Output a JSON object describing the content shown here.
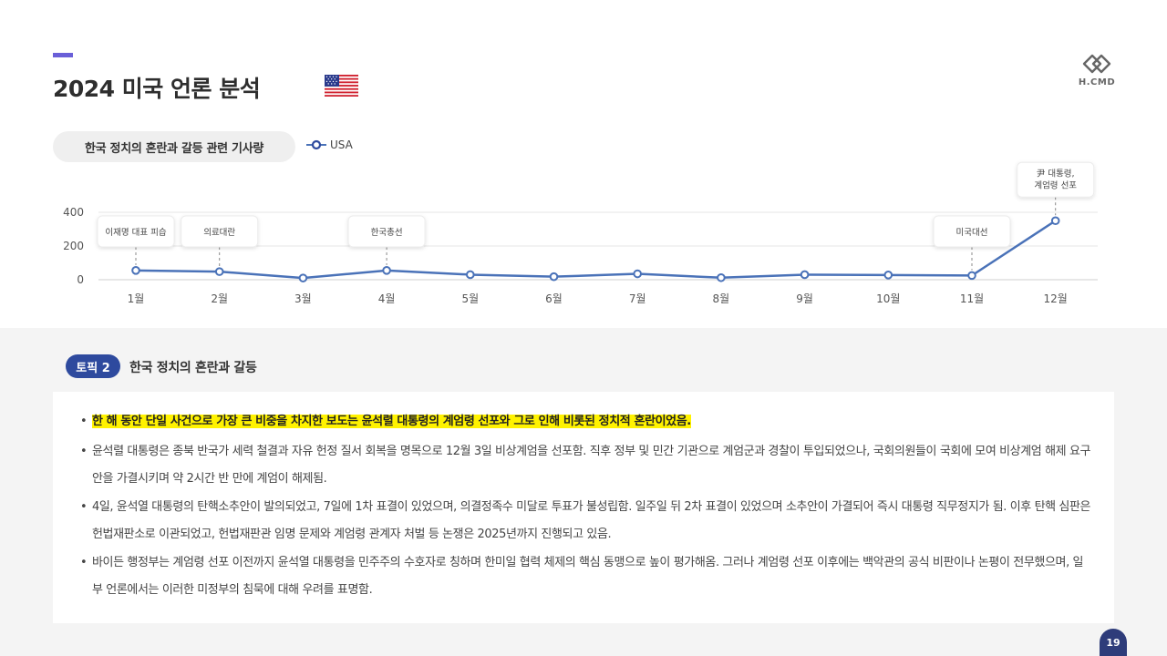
{
  "header": {
    "title": "2024 미국 언론 분석",
    "flag_icon": "us-flag-icon",
    "logo_text": "H.CMD"
  },
  "chart_header": {
    "pill_label": "한국 정치의 혼란과 갈등 관련 기사량",
    "legend_label": "USA"
  },
  "chart_data": {
    "type": "line",
    "title": "한국 정치의 혼란과 갈등 관련 기사량",
    "categories": [
      "1월",
      "2월",
      "3월",
      "4월",
      "5월",
      "6월",
      "7월",
      "8월",
      "9월",
      "10월",
      "11월",
      "12월"
    ],
    "series": [
      {
        "name": "USA",
        "values": [
          55,
          48,
          10,
          55,
          30,
          18,
          35,
          12,
          30,
          28,
          25,
          350
        ],
        "color": "#4a72b8"
      }
    ],
    "yticks": [
      0,
      200,
      400
    ],
    "ylim": [
      0,
      400
    ],
    "grid": true,
    "legend": "top-left",
    "annotations": [
      {
        "index": 0,
        "text": "이재명 대표 피습"
      },
      {
        "index": 1,
        "text": "의료대란"
      },
      {
        "index": 3,
        "text": "한국총선"
      },
      {
        "index": 10,
        "text": "미국대선"
      },
      {
        "index": 11,
        "text": "尹 대통령,\n계엄령 선포"
      }
    ]
  },
  "topic": {
    "badge": "토픽 2",
    "title": "한국 정치의 혼란과 갈등"
  },
  "bullets": [
    {
      "text": "한 해 동안 단일 사건으로 가장 큰 비중을 차지한 보도는 윤석렬 대통령의 계엄령 선포와 그로 인해 비롯된 정치적 혼란이었음.",
      "highlight": true
    },
    {
      "text": "윤석렬 대통령은 종북 반국가 세력 철결과 자유 헌정 질서 회복을 명목으로 12월 3일 비상계엄을 선포함. 직후 정부 및 민간 기관으로 계엄군과 경찰이 투입되었으나, 국회의원들이 국회에 모여 비상계엄 해제 요구안을 가결시키며 약 2시간 반 만에 계엄이 해제됨."
    },
    {
      "text": "4일, 윤석열 대통령의 탄핵소추안이 발의되었고, 7일에 1차 표결이 있었으며, 의결정족수 미달로 투표가 불성립함. 일주일 뒤 2차 표결이 있었으며 소추안이 가결되어 즉시 대통령 직무정지가 됨. 이후 탄핵 심판은 헌법재판소로 이관되었고, 헌법재판관 임명 문제와 계엄령 관계자 처벌 등 논쟁은 2025년까지 진행되고 있음."
    },
    {
      "text": "바이든 행정부는 계엄령 선포 이전까지 윤석열 대통령을 민주주의 수호자로 칭하며 한미일 협력 체제의 핵심 동맹으로 높이 평가해옴. 그러나 계엄령 선포 이후에는 백악관의 공식 비판이나 논평이 전무했으며, 일부 언론에서는 이러한 미정부의 침묵에 대해 우려를 표명함."
    }
  ],
  "page_number": "19"
}
